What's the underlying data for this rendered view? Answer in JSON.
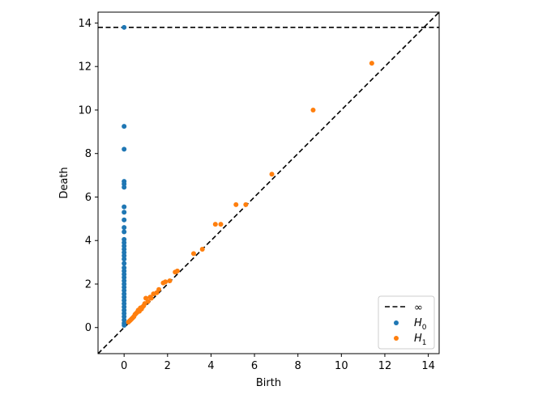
{
  "chart_data": {
    "type": "scatter",
    "title": "",
    "xlabel": "Birth",
    "ylabel": "Death",
    "xlim": [
      -1.2,
      14.5
    ],
    "ylim": [
      -1.2,
      14.5
    ],
    "xticks": [
      0,
      2,
      4,
      6,
      8,
      10,
      12,
      14
    ],
    "yticks": [
      0,
      2,
      4,
      6,
      8,
      10,
      12,
      14
    ],
    "xtick_labels": [
      "0",
      "2",
      "4",
      "6",
      "8",
      "10",
      "12",
      "14"
    ],
    "ytick_labels": [
      "0",
      "2",
      "4",
      "6",
      "8",
      "10",
      "12",
      "14"
    ],
    "grid": false,
    "legend_position": "bottom-right",
    "infinity_line": {
      "label": "∞",
      "y": 13.8,
      "style": "dashed",
      "color": "#000000"
    },
    "diagonal": {
      "style": "dashed",
      "color": "#000000"
    },
    "series": [
      {
        "name": "H",
        "subscript": "0",
        "color": "#1f77b4",
        "points": [
          [
            0,
            13.8
          ],
          [
            0,
            9.25
          ],
          [
            0,
            8.2
          ],
          [
            0,
            6.72
          ],
          [
            0,
            6.6
          ],
          [
            0,
            6.45
          ],
          [
            0,
            5.55
          ],
          [
            0,
            5.3
          ],
          [
            0,
            4.95
          ],
          [
            0,
            4.6
          ],
          [
            0,
            4.4
          ],
          [
            0,
            4.05
          ],
          [
            0,
            3.9
          ],
          [
            0,
            3.75
          ],
          [
            0,
            3.6
          ],
          [
            0,
            3.45
          ],
          [
            0,
            3.3
          ],
          [
            0,
            3.15
          ],
          [
            0,
            2.95
          ],
          [
            0,
            2.75
          ],
          [
            0,
            2.6
          ],
          [
            0,
            2.45
          ],
          [
            0,
            2.3
          ],
          [
            0,
            2.15
          ],
          [
            0,
            2.0
          ],
          [
            0,
            1.85
          ],
          [
            0,
            1.7
          ],
          [
            0,
            1.55
          ],
          [
            0,
            1.4
          ],
          [
            0,
            1.25
          ],
          [
            0,
            1.1
          ],
          [
            0,
            0.95
          ],
          [
            0,
            0.8
          ],
          [
            0,
            0.65
          ],
          [
            0,
            0.5
          ],
          [
            0,
            0.35
          ],
          [
            0,
            0.2
          ],
          [
            0,
            0.1
          ]
        ]
      },
      {
        "name": "H",
        "subscript": "1",
        "color": "#ff7f0e",
        "points": [
          [
            11.4,
            12.15
          ],
          [
            8.7,
            10.0
          ],
          [
            6.8,
            7.05
          ],
          [
            5.6,
            5.65
          ],
          [
            5.15,
            5.65
          ],
          [
            4.45,
            4.75
          ],
          [
            4.2,
            4.75
          ],
          [
            3.6,
            3.6
          ],
          [
            3.2,
            3.4
          ],
          [
            2.45,
            2.6
          ],
          [
            2.35,
            2.55
          ],
          [
            2.1,
            2.15
          ],
          [
            1.9,
            2.1
          ],
          [
            1.8,
            2.05
          ],
          [
            1.6,
            1.75
          ],
          [
            1.5,
            1.6
          ],
          [
            1.35,
            1.55
          ],
          [
            1.2,
            1.4
          ],
          [
            1.0,
            1.35
          ],
          [
            1.1,
            1.2
          ],
          [
            0.95,
            1.1
          ],
          [
            0.85,
            0.95
          ],
          [
            0.75,
            0.9
          ],
          [
            0.7,
            0.75
          ],
          [
            0.6,
            0.7
          ],
          [
            0.55,
            0.65
          ],
          [
            0.5,
            0.6
          ],
          [
            0.45,
            0.5
          ],
          [
            0.4,
            0.45
          ],
          [
            0.35,
            0.4
          ],
          [
            0.3,
            0.35
          ],
          [
            0.25,
            0.3
          ],
          [
            0.2,
            0.25
          ],
          [
            0.9,
            1.0
          ],
          [
            1.25,
            1.35
          ],
          [
            0.65,
            0.8
          ],
          [
            0.8,
            0.85
          ]
        ]
      }
    ]
  }
}
